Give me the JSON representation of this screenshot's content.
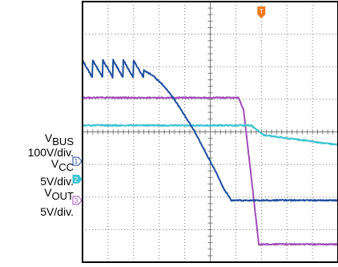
{
  "chart_data": {
    "type": "line",
    "grid": true,
    "colors": {
      "vbus": "#1f4e9e",
      "vcc": "#3ec3cf",
      "vout": "#a14cb8",
      "trigger": "#f07a20",
      "grid": "#7a7a7a",
      "frame": "#000000"
    },
    "channels": [
      {
        "id": "vbus",
        "marker": "1",
        "name_base": "V",
        "name_sub": "BUS",
        "scale": "100V/div."
      },
      {
        "id": "vcc",
        "marker": "2",
        "name_base": "V",
        "name_sub": "CC",
        "scale": "5V/div."
      },
      {
        "id": "vout",
        "marker": "3",
        "name_base": "V",
        "name_sub": "OUT",
        "scale": "5V/div."
      }
    ],
    "trigger_marker": "T",
    "x_divisions": 10,
    "y_divisions": 8,
    "series": [
      {
        "id": "vbus",
        "ripple": {
          "x_from": 0,
          "x_to": 2.4,
          "sawtooth_period": 0.4,
          "low": 1.8,
          "high": 2.35
        },
        "points": [
          [
            0,
            1.9
          ],
          [
            2.0,
            1.95
          ],
          [
            2.4,
            2.1
          ],
          [
            2.8,
            2.3
          ],
          [
            3.2,
            2.6
          ],
          [
            3.6,
            3.0
          ],
          [
            4.0,
            3.5
          ],
          [
            4.4,
            4.0
          ],
          [
            4.8,
            4.6
          ],
          [
            5.2,
            5.2
          ],
          [
            5.5,
            5.7
          ],
          [
            5.82,
            6.1
          ],
          [
            6.1,
            6.1
          ],
          [
            10,
            6.1
          ]
        ]
      },
      {
        "id": "vout",
        "points": [
          [
            0,
            2.95
          ],
          [
            6.1,
            2.95
          ],
          [
            6.3,
            3.3
          ],
          [
            6.55,
            5.0
          ],
          [
            6.9,
            7.45
          ],
          [
            10,
            7.45
          ]
        ]
      },
      {
        "id": "vcc",
        "points": [
          [
            0,
            3.8
          ],
          [
            6.6,
            3.8
          ],
          [
            7.1,
            4.1
          ],
          [
            10,
            4.4
          ]
        ]
      }
    ]
  }
}
